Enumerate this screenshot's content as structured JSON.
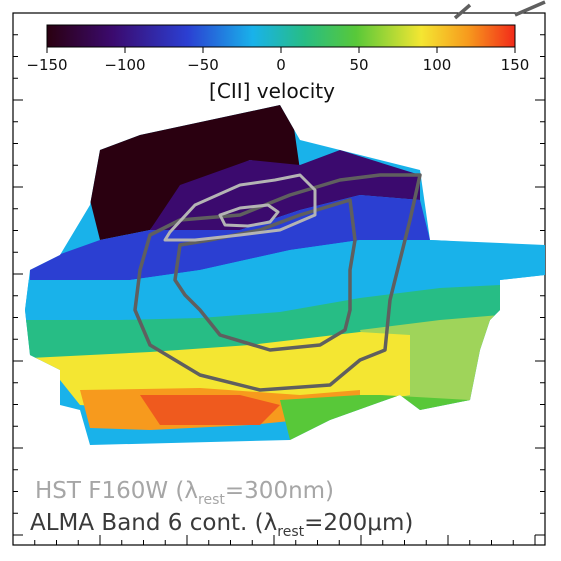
{
  "colorbar": {
    "ticks": [
      "−150",
      "−100",
      "−50",
      "0",
      "50",
      "100",
      "150"
    ],
    "tick_values": [
      -150,
      -100,
      -50,
      0,
      50,
      100,
      150
    ],
    "range": [
      -150,
      150
    ],
    "title": "[CII] velocity",
    "colormap": [
      "#2a0010",
      "#3b0a6e",
      "#2b3fd2",
      "#19b2ea",
      "#27bd85",
      "#58c839",
      "#f4e632",
      "#f79a1d",
      "#f22a1a"
    ]
  },
  "legend": {
    "hst": {
      "prefix": "HST F160W (",
      "lambda": "λ",
      "sub": "rest",
      "suffix": "=300nm)",
      "color": "#a6a6a6"
    },
    "alma": {
      "prefix": "ALMA Band 6 cont. (",
      "lambda": "λ",
      "sub": "rest",
      "suffix": "=200μm)",
      "color": "#3a3a3a"
    }
  },
  "contours": {
    "hst_color": "#a6a6a6",
    "alma_color": "#5f5f5f"
  }
}
